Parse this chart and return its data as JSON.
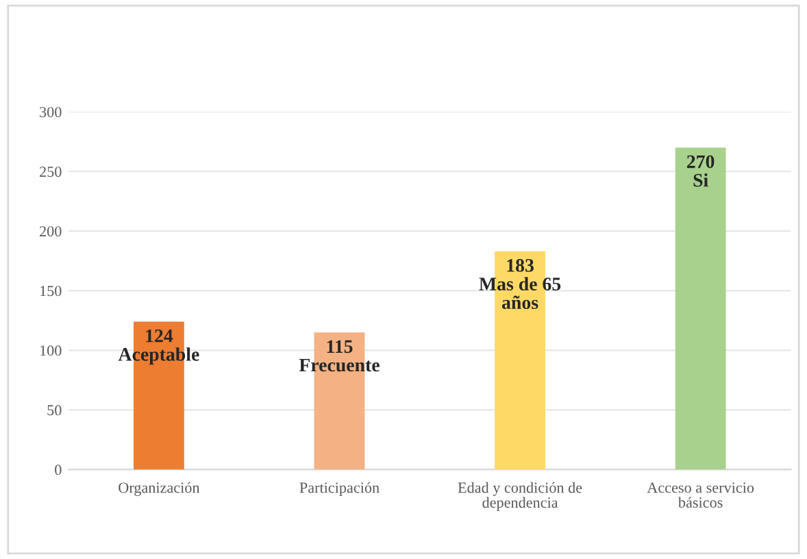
{
  "chart_data": {
    "type": "bar",
    "categories": [
      "Organización",
      "Participación",
      "Edad y condición de\ndependencia",
      "Acceso a servicio\nbásicos"
    ],
    "values": [
      124,
      115,
      183,
      270
    ],
    "colors": [
      "#ed7d31",
      "#f4b183",
      "#ffd966",
      "#a9d18e"
    ],
    "value_labels": [
      "124\nAceptable",
      "115\nFrecuente",
      "183\nMas de 65\naños",
      "270\nSi"
    ],
    "ylim": [
      0,
      300
    ],
    "yticks": [
      0,
      50,
      100,
      150,
      200,
      250,
      300
    ],
    "grid": "y"
  }
}
